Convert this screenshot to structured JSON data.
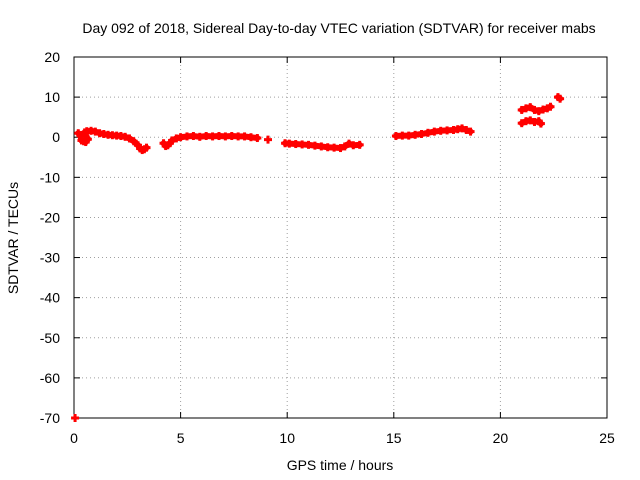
{
  "chart_data": {
    "type": "scatter",
    "title": "Day 092 of 2018, Sidereal Day-to-day VTEC variation (SDTVAR) for receiver mabs",
    "xlabel": "GPS time / hours",
    "ylabel": "SDTVAR / TECUs",
    "xlim": [
      0,
      25
    ],
    "ylim": [
      -70,
      20
    ],
    "xticks": [
      0,
      5,
      10,
      15,
      20,
      25
    ],
    "yticks": [
      -70,
      -60,
      -50,
      -40,
      -30,
      -20,
      -10,
      0,
      10,
      20
    ],
    "grid": true,
    "marker_color": "#ff0000",
    "series": [
      {
        "name": "SDTVAR",
        "points": [
          [
            0.05,
            -70.0
          ],
          [
            0.2,
            1.0
          ],
          [
            0.3,
            0.5
          ],
          [
            0.35,
            -0.8
          ],
          [
            0.45,
            -1.0
          ],
          [
            0.55,
            -1.2
          ],
          [
            0.65,
            -0.5
          ],
          [
            0.5,
            1.2
          ],
          [
            0.6,
            1.5
          ],
          [
            0.8,
            1.6
          ],
          [
            1.0,
            1.4
          ],
          [
            1.2,
            1.0
          ],
          [
            1.4,
            0.8
          ],
          [
            1.6,
            0.6
          ],
          [
            1.8,
            0.5
          ],
          [
            2.0,
            0.4
          ],
          [
            2.2,
            0.3
          ],
          [
            2.4,
            0.1
          ],
          [
            2.6,
            -0.3
          ],
          [
            2.8,
            -1.0
          ],
          [
            3.0,
            -2.0
          ],
          [
            3.1,
            -2.8
          ],
          [
            3.2,
            -3.2
          ],
          [
            3.3,
            -3.0
          ],
          [
            3.4,
            -2.6
          ],
          [
            4.2,
            -1.5
          ],
          [
            4.3,
            -2.2
          ],
          [
            4.4,
            -2.0
          ],
          [
            4.5,
            -1.5
          ],
          [
            4.6,
            -0.8
          ],
          [
            4.8,
            -0.3
          ],
          [
            5.0,
            0.0
          ],
          [
            5.3,
            0.2
          ],
          [
            5.6,
            0.3
          ],
          [
            5.9,
            0.1
          ],
          [
            6.2,
            0.3
          ],
          [
            6.5,
            0.2
          ],
          [
            6.8,
            0.3
          ],
          [
            7.1,
            0.2
          ],
          [
            7.4,
            0.3
          ],
          [
            7.7,
            0.2
          ],
          [
            8.0,
            0.2
          ],
          [
            8.3,
            0.0
          ],
          [
            8.6,
            -0.2
          ],
          [
            9.1,
            -0.6
          ],
          [
            9.9,
            -1.5
          ],
          [
            10.1,
            -1.6
          ],
          [
            10.4,
            -1.7
          ],
          [
            10.7,
            -1.8
          ],
          [
            11.0,
            -1.9
          ],
          [
            11.3,
            -2.1
          ],
          [
            11.6,
            -2.3
          ],
          [
            11.9,
            -2.5
          ],
          [
            12.2,
            -2.6
          ],
          [
            12.5,
            -2.7
          ],
          [
            12.7,
            -2.3
          ],
          [
            12.9,
            -1.6
          ],
          [
            13.1,
            -2.0
          ],
          [
            13.4,
            -1.9
          ],
          [
            15.1,
            0.3
          ],
          [
            15.4,
            0.4
          ],
          [
            15.7,
            0.4
          ],
          [
            16.0,
            0.6
          ],
          [
            16.3,
            0.8
          ],
          [
            16.6,
            1.1
          ],
          [
            16.9,
            1.4
          ],
          [
            17.2,
            1.6
          ],
          [
            17.5,
            1.7
          ],
          [
            17.8,
            1.8
          ],
          [
            18.0,
            2.0
          ],
          [
            18.2,
            2.2
          ],
          [
            18.4,
            1.8
          ],
          [
            18.6,
            1.4
          ],
          [
            21.0,
            6.8
          ],
          [
            21.2,
            7.2
          ],
          [
            21.4,
            7.5
          ],
          [
            21.6,
            6.8
          ],
          [
            21.8,
            6.5
          ],
          [
            22.0,
            6.9
          ],
          [
            22.2,
            7.2
          ],
          [
            22.35,
            7.6
          ],
          [
            21.0,
            3.5
          ],
          [
            21.2,
            4.0
          ],
          [
            21.4,
            4.2
          ],
          [
            21.6,
            3.8
          ],
          [
            21.8,
            4.0
          ],
          [
            21.9,
            3.4
          ],
          [
            22.7,
            10.0
          ],
          [
            22.8,
            9.6
          ]
        ]
      }
    ]
  }
}
